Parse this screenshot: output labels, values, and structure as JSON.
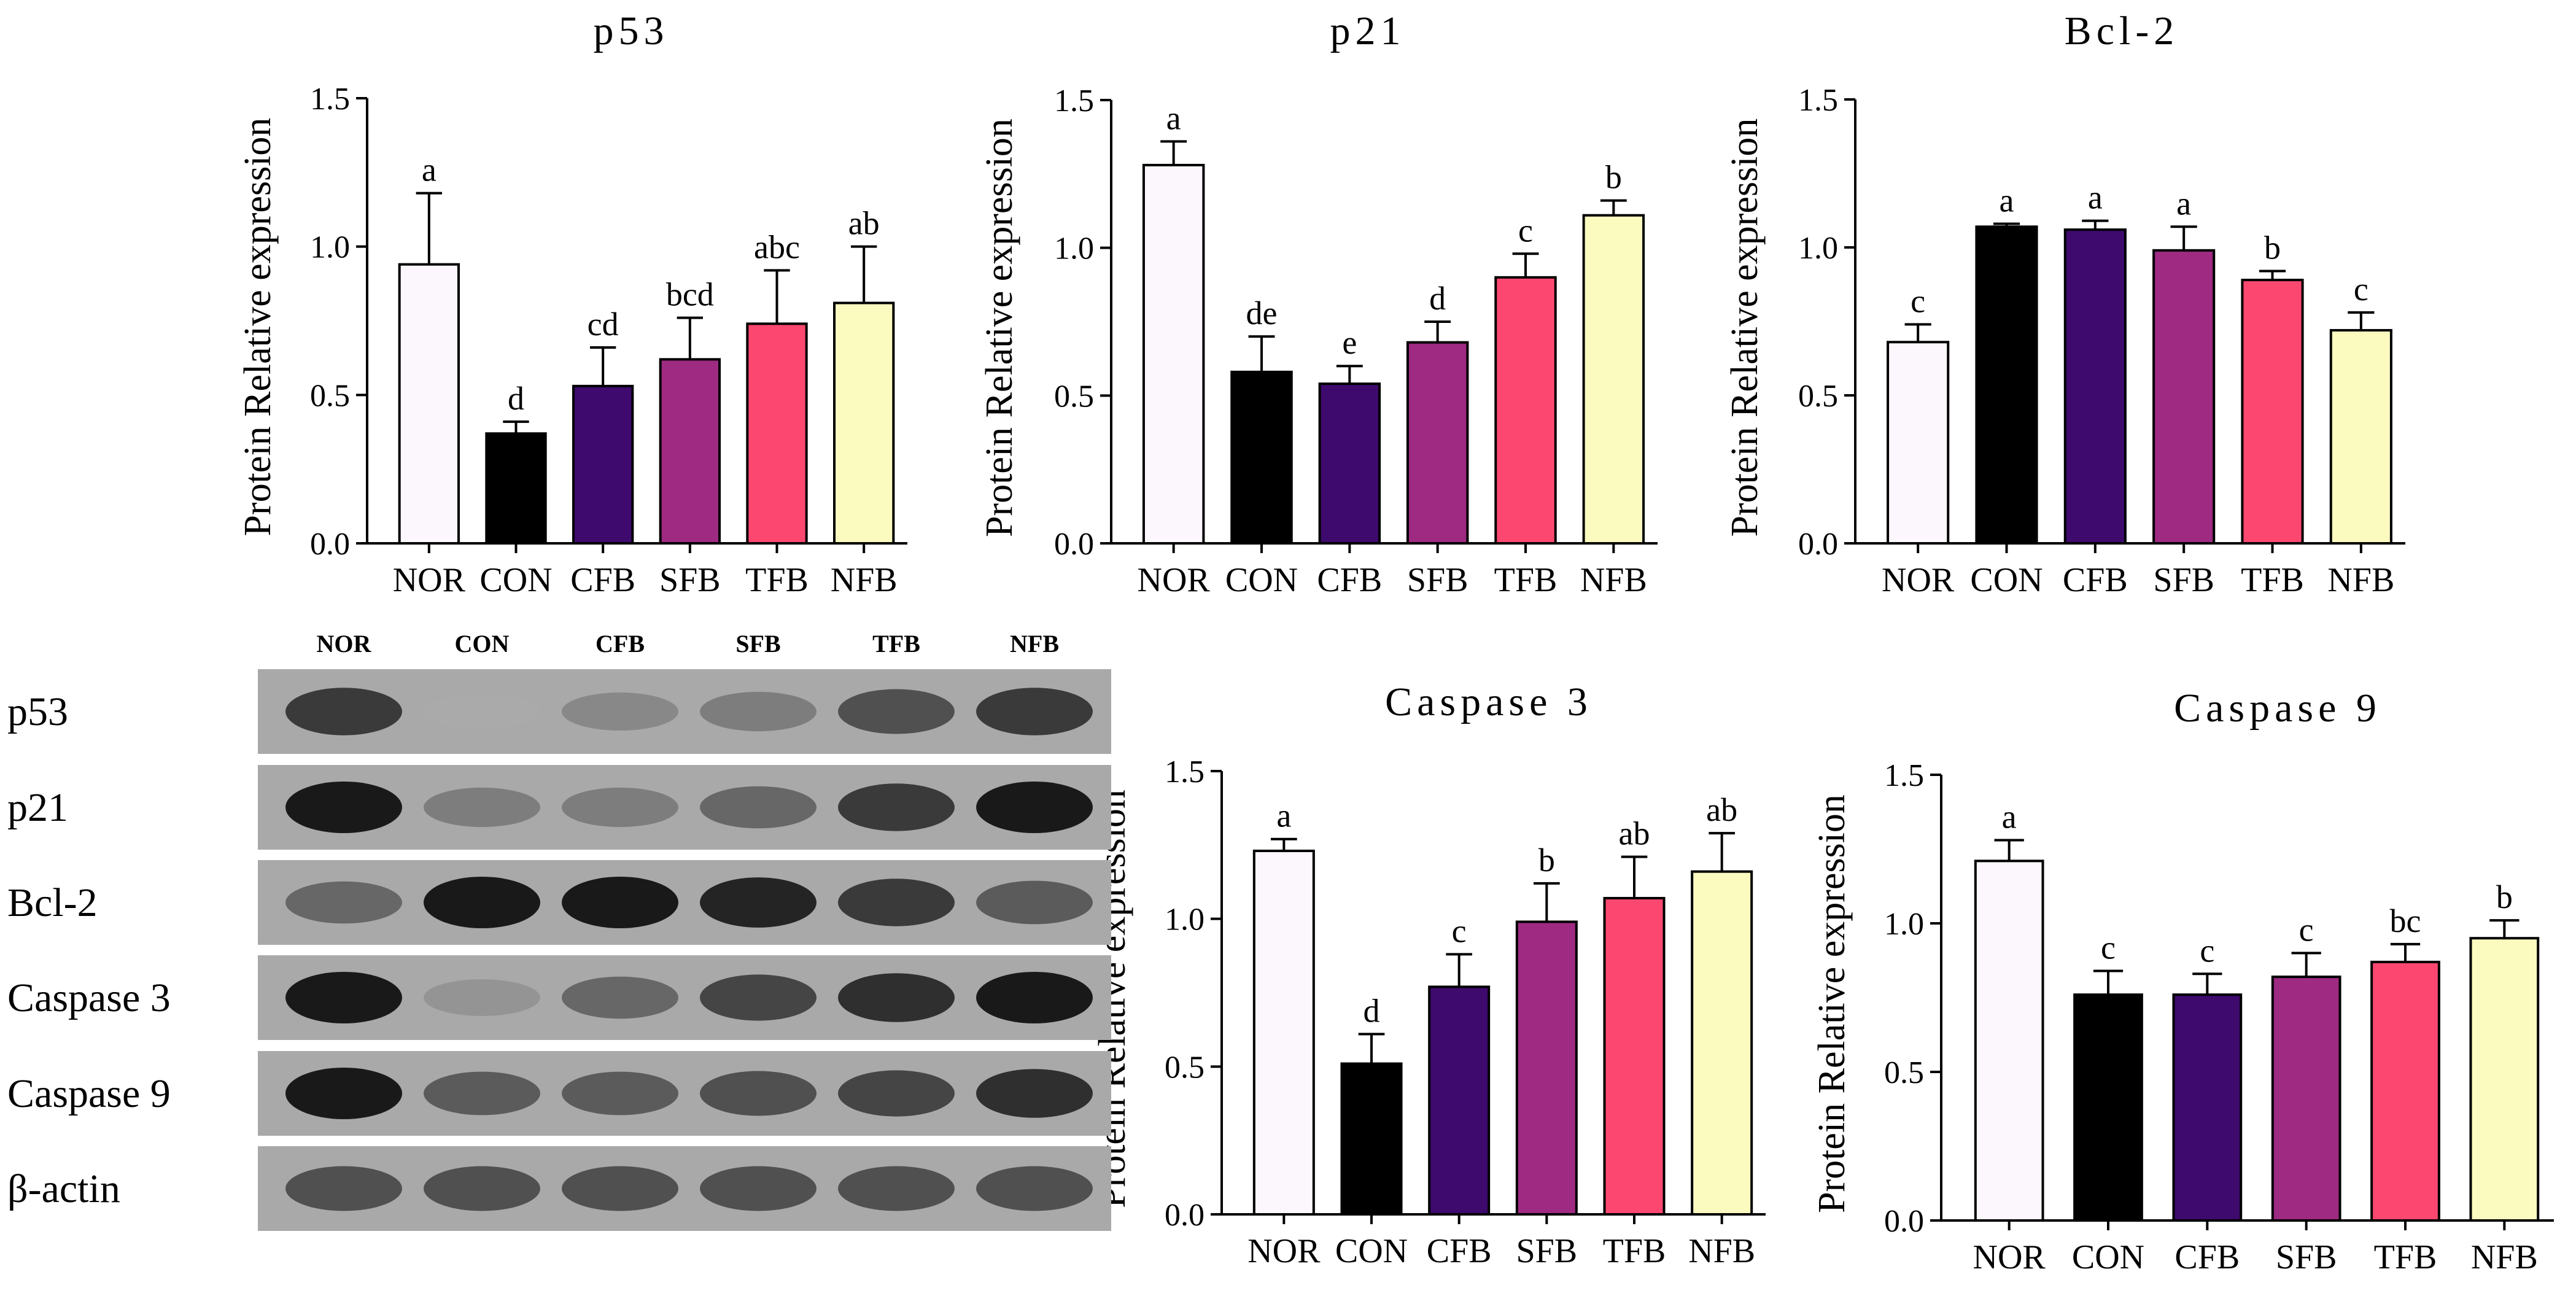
{
  "chart_data": [
    {
      "type": "bar",
      "title": "p53",
      "ylabel": "Protein Relative expression",
      "ylim": [
        0,
        1.5
      ],
      "yticks": [
        "0.0",
        "0.5",
        "1.0",
        "1.5"
      ],
      "categories": [
        "NOR",
        "CON",
        "CFB",
        "SFB",
        "TFB",
        "NFB"
      ],
      "values": [
        0.94,
        0.37,
        0.53,
        0.62,
        0.74,
        0.81
      ],
      "errors": [
        0.24,
        0.04,
        0.13,
        0.14,
        0.18,
        0.19
      ],
      "significance": [
        "a",
        "d",
        "cd",
        "bcd",
        "abc",
        "ab"
      ]
    },
    {
      "type": "bar",
      "title": "p21",
      "ylabel": "Protein Relative expression",
      "ylim": [
        0,
        1.5
      ],
      "yticks": [
        "0.0",
        "0.5",
        "1.0",
        "1.5"
      ],
      "categories": [
        "NOR",
        "CON",
        "CFB",
        "SFB",
        "TFB",
        "NFB"
      ],
      "values": [
        1.28,
        0.58,
        0.54,
        0.68,
        0.9,
        1.11
      ],
      "errors": [
        0.08,
        0.12,
        0.06,
        0.07,
        0.08,
        0.05
      ],
      "significance": [
        "a",
        "de",
        "e",
        "d",
        "c",
        "b"
      ]
    },
    {
      "type": "bar",
      "title": "Bcl-2",
      "ylabel": "Protein Relative expression",
      "ylim": [
        0,
        1.5
      ],
      "yticks": [
        "0.0",
        "0.5",
        "1.0",
        "1.5"
      ],
      "categories": [
        "NOR",
        "CON",
        "CFB",
        "SFB",
        "TFB",
        "NFB"
      ],
      "values": [
        0.68,
        1.07,
        1.06,
        0.99,
        0.89,
        0.72
      ],
      "errors": [
        0.06,
        0.01,
        0.03,
        0.08,
        0.03,
        0.06
      ],
      "significance": [
        "c",
        "a",
        "a",
        "a",
        "b",
        "c"
      ]
    },
    {
      "type": "bar",
      "title": "Caspase 3",
      "ylabel": "Protein Relative expression",
      "ylim": [
        0,
        1.5
      ],
      "yticks": [
        "0.0",
        "0.5",
        "1.0",
        "1.5"
      ],
      "categories": [
        "NOR",
        "CON",
        "CFB",
        "SFB",
        "TFB",
        "NFB"
      ],
      "values": [
        1.23,
        0.51,
        0.77,
        0.99,
        1.07,
        1.16
      ],
      "errors": [
        0.04,
        0.1,
        0.11,
        0.13,
        0.14,
        0.13
      ],
      "significance": [
        "a",
        "d",
        "c",
        "b",
        "ab",
        "ab"
      ]
    },
    {
      "type": "bar",
      "title": "Caspase 9",
      "ylabel": "Protein Relative expression",
      "ylim": [
        0,
        1.5
      ],
      "yticks": [
        "0.0",
        "0.5",
        "1.0",
        "1.5"
      ],
      "categories": [
        "NOR",
        "CON",
        "CFB",
        "SFB",
        "TFB",
        "NFB"
      ],
      "values": [
        1.21,
        0.76,
        0.76,
        0.82,
        0.87,
        0.95
      ],
      "errors": [
        0.07,
        0.08,
        0.07,
        0.08,
        0.06,
        0.06
      ],
      "significance": [
        "a",
        "c",
        "c",
        "c",
        "bc",
        "b"
      ]
    }
  ],
  "bar_colors": [
    "#fcf7fc",
    "#000000",
    "#3e0a6d",
    "#9e2a82",
    "#fc4870",
    "#fbfbc0"
  ],
  "blot": {
    "columns": [
      "NOR",
      "CON",
      "CFB",
      "SFB",
      "TFB",
      "NFB"
    ],
    "rows": [
      {
        "label": "p53",
        "intensity": [
          0.85,
          0.35,
          0.5,
          0.55,
          0.75,
          0.85
        ]
      },
      {
        "label": "p21",
        "intensity": [
          1.0,
          0.55,
          0.55,
          0.65,
          0.85,
          1.0
        ]
      },
      {
        "label": "Bcl-2",
        "intensity": [
          0.65,
          1.0,
          1.0,
          0.95,
          0.85,
          0.7
        ]
      },
      {
        "label": "Caspase 3",
        "intensity": [
          1.0,
          0.45,
          0.65,
          0.8,
          0.9,
          1.0
        ]
      },
      {
        "label": "Caspase 9",
        "intensity": [
          1.0,
          0.7,
          0.7,
          0.75,
          0.8,
          0.9
        ]
      },
      {
        "label": "β-actin",
        "intensity": [
          0.75,
          0.75,
          0.75,
          0.75,
          0.75,
          0.75
        ]
      }
    ]
  }
}
